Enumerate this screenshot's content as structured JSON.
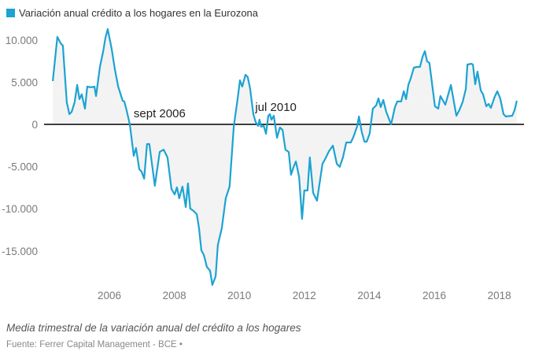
{
  "colors": {
    "line": "#1ca3d2",
    "fill": "#f3f3f3",
    "zero_line": "#000000"
  },
  "chart_data": {
    "type": "area",
    "title": "Variación anual crédito a los hogares en la Eurozona",
    "legend": [
      {
        "name": "Variación anual crédito a los hogares en la Eurozona",
        "color": "#1ca3d2"
      }
    ],
    "legend_position": "top-left",
    "xlabel": "",
    "ylabel": "",
    "xlim": [
      2004.2,
      2018.6
    ],
    "ylim": [
      -19000,
      11500
    ],
    "y_ticks": [
      10000,
      5000,
      0,
      -5000,
      -10000,
      -15000
    ],
    "y_tick_labels": [
      "10.000",
      "5.000",
      "0",
      "-5.000",
      "-10.000",
      "-15.000"
    ],
    "x_ticks": [
      2006,
      2008,
      2010,
      2012,
      2014,
      2016,
      2018
    ],
    "x_tick_labels": [
      "2006",
      "2008",
      "2010",
      "2012",
      "2014",
      "2016",
      "2018"
    ],
    "grid": false,
    "annotations": [
      {
        "text": "sept 2006",
        "x": 2006.7,
        "y": 0
      },
      {
        "text": "jul 2010",
        "x": 2010.5,
        "y": 0
      }
    ],
    "series": [
      {
        "name": "Variación anual crédito a los hogares en la Eurozona",
        "x": [
          2004.26,
          2004.4,
          2004.5,
          2004.57,
          2004.69,
          2004.77,
          2004.84,
          2004.93,
          2005.01,
          2005.08,
          2005.15,
          2005.25,
          2005.32,
          2005.44,
          2005.54,
          2005.59,
          2005.71,
          2005.81,
          2005.88,
          2005.95,
          2006.07,
          2006.17,
          2006.27,
          2006.41,
          2006.46,
          2006.53,
          2006.63,
          2006.75,
          2006.82,
          2006.92,
          2006.99,
          2007.07,
          2007.16,
          2007.23,
          2007.4,
          2007.55,
          2007.67,
          2007.79,
          2007.91,
          2008.01,
          2008.08,
          2008.15,
          2008.25,
          2008.35,
          2008.42,
          2008.49,
          2008.59,
          2008.69,
          2008.76,
          2008.83,
          2008.91,
          2009.0,
          2009.1,
          2009.17,
          2009.27,
          2009.34,
          2009.46,
          2009.58,
          2009.7,
          2009.83,
          2009.95,
          2010.02,
          2010.09,
          2010.19,
          2010.26,
          2010.33,
          2010.43,
          2010.5,
          2010.58,
          2010.62,
          2010.67,
          2010.75,
          2010.82,
          2010.89,
          2010.94,
          2010.99,
          2011.06,
          2011.16,
          2011.25,
          2011.33,
          2011.42,
          2011.52,
          2011.59,
          2011.67,
          2011.74,
          2011.84,
          2011.93,
          2012.0,
          2012.1,
          2012.17,
          2012.27,
          2012.39,
          2012.56,
          2012.63,
          2012.76,
          2012.88,
          2013.0,
          2013.09,
          2013.19,
          2013.29,
          2013.43,
          2013.51,
          2013.63,
          2013.68,
          2013.77,
          2013.85,
          2013.92,
          2014.01,
          2014.11,
          2014.21,
          2014.28,
          2014.35,
          2014.43,
          2014.52,
          2014.67,
          2014.79,
          2014.86,
          2014.98,
          2015.06,
          2015.13,
          2015.2,
          2015.27,
          2015.37,
          2015.47,
          2015.56,
          2015.64,
          2015.71,
          2015.78,
          2015.85,
          2016.02,
          2016.12,
          2016.19,
          2016.34,
          2016.51,
          2016.68,
          2016.77,
          2016.87,
          2016.97,
          2017.02,
          2017.14,
          2017.19,
          2017.26,
          2017.33,
          2017.43,
          2017.5,
          2017.6,
          2017.67,
          2017.74,
          2017.86,
          2017.94,
          2018.03,
          2018.13,
          2018.2,
          2018.4,
          2018.47,
          2018.54
        ],
        "values": [
          5130,
          10360,
          9610,
          9330,
          2610,
          1210,
          1490,
          2610,
          4670,
          2990,
          3550,
          1870,
          4480,
          4390,
          4480,
          3360,
          6810,
          8680,
          10260,
          11290,
          8960,
          6530,
          4480,
          2800,
          2710,
          1680,
          0,
          -3730,
          -2800,
          -5320,
          -5600,
          -6440,
          -2330,
          -2330,
          -7280,
          -3270,
          -2990,
          -3920,
          -7650,
          -8300,
          -7460,
          -8770,
          -7370,
          -9800,
          -7000,
          -9980,
          -10260,
          -10640,
          -12320,
          -14930,
          -15490,
          -16890,
          -17350,
          -19030,
          -18010,
          -14280,
          -12320,
          -8770,
          -7370,
          -190,
          3080,
          5220,
          4480,
          5880,
          5600,
          4290,
          1210,
          280,
          -190,
          560,
          -280,
          -190,
          -1120,
          1030,
          1210,
          560,
          1030,
          -1590,
          -370,
          -650,
          -2990,
          -3270,
          -5970,
          -5040,
          -4390,
          -6250,
          -11200,
          -7840,
          -7840,
          -3920,
          -8120,
          -9050,
          -4670,
          -4200,
          -3170,
          -2520,
          -4670,
          -5040,
          -3920,
          -2150,
          -2150,
          -1490,
          -190,
          930,
          -930,
          -2050,
          -2050,
          -1120,
          1870,
          2240,
          3080,
          2050,
          2890,
          1490,
          0,
          2050,
          2710,
          2710,
          3920,
          2990,
          4670,
          5410,
          6720,
          6810,
          6810,
          8020,
          8680,
          7460,
          7280,
          2150,
          1870,
          3360,
          2330,
          4670,
          1030,
          1680,
          2610,
          4200,
          7090,
          7180,
          7090,
          4760,
          6250,
          4010,
          3550,
          2150,
          2430,
          1960,
          3270,
          3920,
          3080,
          1210,
          930,
          1030,
          1680,
          2800
        ]
      }
    ]
  },
  "footer": {
    "caption": "Media trimestral de la variación anual del crédito a los hogares",
    "source": "Fuente: Ferrer Capital Management - BCE •"
  }
}
